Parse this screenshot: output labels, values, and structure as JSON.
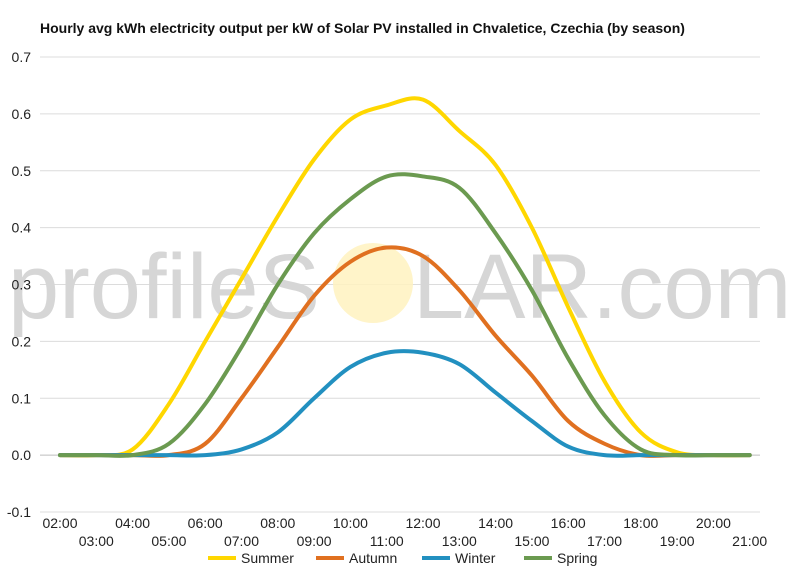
{
  "chart_data": {
    "type": "line",
    "title": "Hourly avg kWh electricity output per kW of Solar PV installed in Chvaletice, Czechia (by season)",
    "watermark": {
      "prefix": "profileS",
      "suffix": "LAR.com"
    },
    "xlabel": "",
    "ylabel": "",
    "x": [
      "02:00",
      "03:00",
      "04:00",
      "05:00",
      "06:00",
      "07:00",
      "08:00",
      "09:00",
      "10:00",
      "11:00",
      "12:00",
      "13:00",
      "14:00",
      "15:00",
      "16:00",
      "17:00",
      "18:00",
      "19:00",
      "20:00",
      "21:00"
    ],
    "x_ticks_top": [
      "02:00",
      "04:00",
      "06:00",
      "08:00",
      "10:00",
      "12:00",
      "14:00",
      "16:00",
      "18:00",
      "20:00"
    ],
    "x_ticks_bottom": [
      "03:00",
      "05:00",
      "07:00",
      "09:00",
      "11:00",
      "13:00",
      "15:00",
      "17:00",
      "19:00",
      "21:00"
    ],
    "y_ticks": [
      "0.7",
      "0.6",
      "0.5",
      "0.4",
      "0.3",
      "0.2",
      "0.1",
      "0.0",
      "-0.1"
    ],
    "ylim": [
      -0.1,
      0.7
    ],
    "grid": true,
    "legend_position": "bottom",
    "series": [
      {
        "name": "Summer",
        "color": "#FFD700",
        "values": [
          0.0,
          0.0,
          0.01,
          0.09,
          0.2,
          0.31,
          0.42,
          0.52,
          0.59,
          0.615,
          0.625,
          0.57,
          0.51,
          0.4,
          0.26,
          0.13,
          0.04,
          0.005,
          0.0,
          0.0
        ]
      },
      {
        "name": "Autumn",
        "color": "#E07020",
        "values": [
          0.0,
          0.0,
          0.0,
          0.0,
          0.02,
          0.1,
          0.19,
          0.28,
          0.34,
          0.365,
          0.35,
          0.29,
          0.21,
          0.14,
          0.06,
          0.02,
          0.0,
          0.0,
          0.0,
          0.0
        ]
      },
      {
        "name": "Winter",
        "color": "#2290C0",
        "values": [
          0.0,
          0.0,
          0.0,
          0.0,
          0.0,
          0.01,
          0.04,
          0.1,
          0.155,
          0.18,
          0.18,
          0.16,
          0.11,
          0.06,
          0.015,
          0.0,
          0.0,
          0.0,
          0.0,
          0.0
        ]
      },
      {
        "name": "Spring",
        "color": "#6B9A50",
        "values": [
          0.0,
          0.0,
          0.0,
          0.02,
          0.09,
          0.19,
          0.3,
          0.39,
          0.45,
          0.49,
          0.49,
          0.47,
          0.39,
          0.29,
          0.17,
          0.07,
          0.01,
          0.0,
          0.0,
          0.0
        ]
      }
    ]
  }
}
